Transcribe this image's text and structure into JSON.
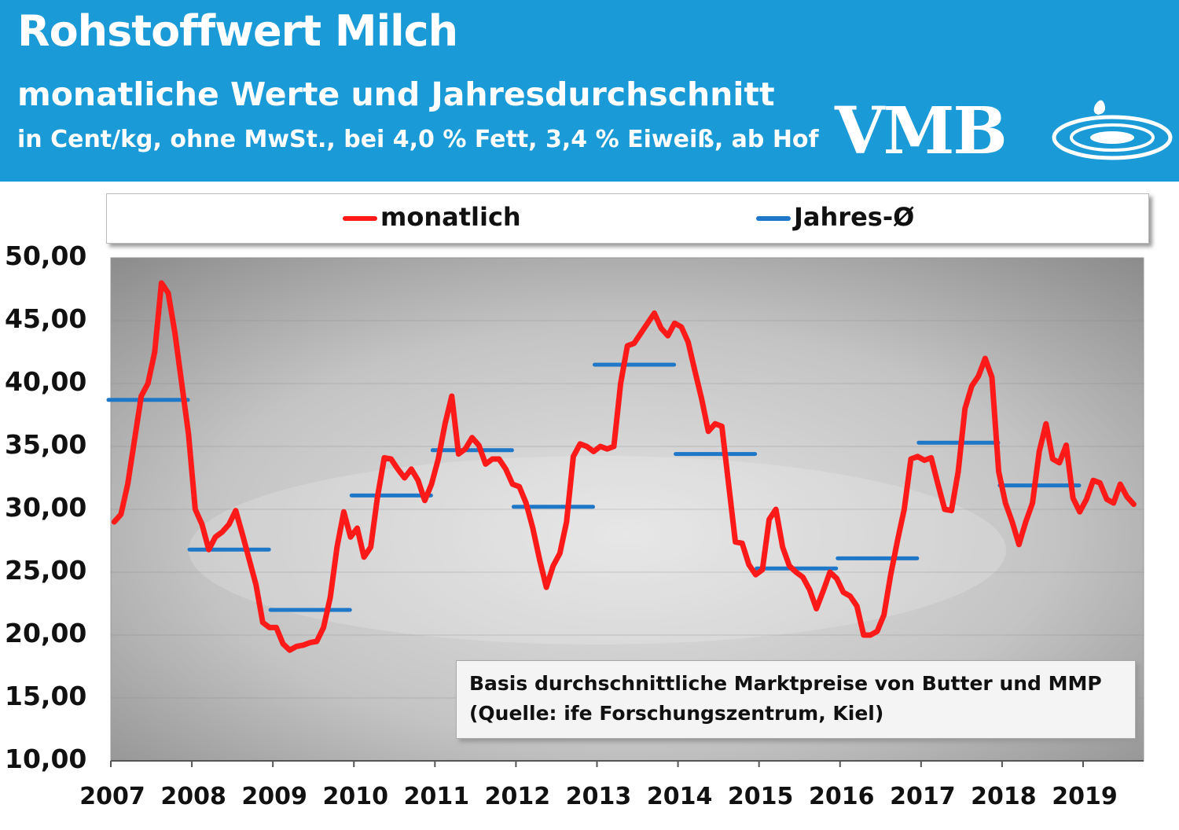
{
  "header": {
    "title": "Rohstoffwert Milch",
    "subtitle": "monatliche  Werte und Jahresdurchschnitt",
    "unit_line": "in Cent/kg, ohne MwSt., bei 4,0 % Fett, 3,4 % Eiweiß, ab Hof",
    "logo_text": "VMB"
  },
  "colors": {
    "header_bg": "#1a9ad6",
    "monthly": "#ff1a1a",
    "annual": "#1f77c8"
  },
  "note": {
    "line1": "Basis durchschnittliche Marktpreise von Butter und MMP",
    "line2": "(Quelle: ife Forschungszentrum, Kiel)"
  },
  "chart_data": {
    "type": "line",
    "ylim": [
      10,
      50
    ],
    "yticks": [
      "50,00",
      "45,00",
      "40,00",
      "35,00",
      "30,00",
      "25,00",
      "20,00",
      "15,00",
      "10,00"
    ],
    "xticks": [
      "2007",
      "2008",
      "2009",
      "2010",
      "2011",
      "2012",
      "2013",
      "2014",
      "2015",
      "2016",
      "2017",
      "2018",
      "2019"
    ],
    "x_start_year": 2007,
    "legend": {
      "position": "top",
      "monthly_label": "monatlich",
      "annual_label": "Jahres-Ø"
    },
    "series": [
      {
        "name": "monatlich",
        "color": "#ff1a1a",
        "values": [
          29.0,
          29.6,
          32.0,
          35.5,
          39.0,
          40.0,
          42.5,
          48.0,
          47.2,
          44.0,
          40.0,
          36.0,
          30.0,
          28.8,
          26.8,
          27.8,
          28.2,
          28.8,
          29.9,
          28.0,
          26.0,
          24.0,
          21.0,
          20.6,
          20.6,
          19.3,
          18.8,
          19.1,
          19.2,
          19.4,
          19.5,
          20.6,
          23.0,
          27.0,
          29.8,
          27.8,
          28.5,
          26.2,
          27.0,
          31.0,
          34.1,
          34.0,
          33.2,
          32.5,
          33.2,
          32.3,
          30.7,
          32.0,
          34.0,
          36.8,
          39.0,
          34.4,
          34.8,
          35.7,
          35.1,
          33.6,
          34.0,
          34.0,
          33.2,
          32.0,
          31.8,
          30.5,
          28.5,
          26.0,
          23.8,
          25.5,
          26.5,
          29.0,
          34.2,
          35.2,
          35.0,
          34.6,
          35.0,
          34.8,
          35.0,
          40.0,
          43.0,
          43.2,
          44.0,
          44.8,
          45.6,
          44.4,
          43.8,
          44.8,
          44.5,
          43.3,
          41.0,
          38.8,
          36.2,
          36.8,
          36.6,
          32.0,
          27.4,
          27.3,
          25.6,
          24.8,
          25.2,
          29.2,
          30.0,
          27.0,
          25.5,
          25.0,
          24.6,
          23.6,
          22.1,
          23.5,
          25.0,
          24.5,
          23.4,
          23.1,
          22.3,
          20.0,
          20.0,
          20.3,
          21.6,
          24.8,
          27.5,
          30.0,
          34.0,
          34.2,
          33.9,
          34.1,
          32.0,
          30.0,
          29.9,
          33.0,
          38.0,
          39.8,
          40.6,
          42.0,
          40.5,
          33.0,
          30.5,
          29.0,
          27.2,
          29.0,
          30.5,
          34.6,
          36.8,
          34.0,
          33.7,
          35.1,
          30.9,
          29.8,
          30.8,
          32.3,
          32.1,
          30.8,
          30.5,
          32.0,
          31.0,
          30.4
        ]
      },
      {
        "name": "Jahres-Ø",
        "color": "#1f77c8",
        "values": [
          38.7,
          26.8,
          22.0,
          31.1,
          34.7,
          30.2,
          41.5,
          34.4,
          25.3,
          26.1,
          35.3,
          31.9
        ]
      }
    ]
  }
}
